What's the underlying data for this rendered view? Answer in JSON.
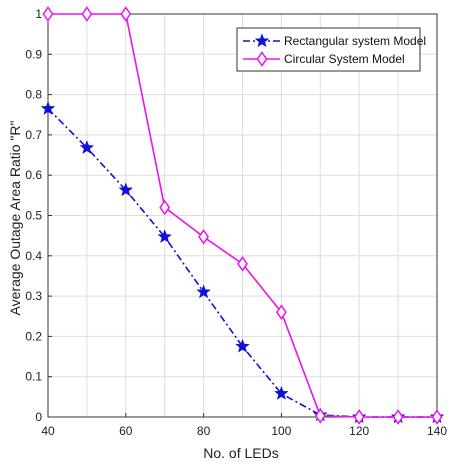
{
  "chart_data": {
    "type": "line",
    "title": "",
    "xlabel": "No. of LEDs",
    "ylabel": "Average Outage Area Ratio \"R\"",
    "xlim": [
      40,
      140
    ],
    "ylim": [
      0,
      1
    ],
    "xticks": [
      40,
      60,
      80,
      100,
      120,
      140
    ],
    "yticks": [
      0,
      0.1,
      0.2,
      0.3,
      0.4,
      0.5,
      0.6,
      0.7,
      0.8,
      0.9,
      1
    ],
    "grid": true,
    "legend_position": "top-right",
    "series": [
      {
        "name": "Rectangular system Model",
        "color": "#1010d8",
        "marker": "star",
        "line_style": "dash-dot",
        "x": [
          40,
          50,
          60,
          70,
          80,
          90,
          100,
          110,
          120,
          130,
          140
        ],
        "y": [
          0.765,
          0.668,
          0.563,
          0.447,
          0.31,
          0.175,
          0.058,
          0.005,
          0.0,
          0.0,
          0.0
        ]
      },
      {
        "name": "Circular System Model",
        "color": "#ee10ee",
        "marker": "diamond",
        "line_style": "solid",
        "x": [
          40,
          50,
          60,
          70,
          80,
          90,
          100,
          110,
          120,
          130,
          140
        ],
        "y": [
          1.0,
          1.0,
          1.0,
          0.52,
          0.447,
          0.38,
          0.26,
          0.003,
          0.0,
          0.0,
          0.0
        ]
      }
    ]
  }
}
